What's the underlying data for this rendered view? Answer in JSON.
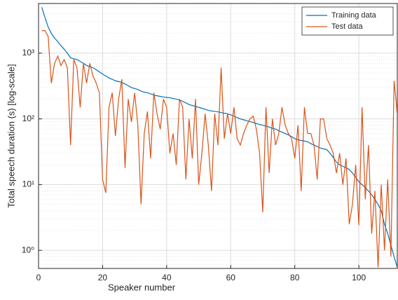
{
  "chart_data": {
    "type": "line",
    "xlabel": "Speaker number",
    "ylabel": "Total speech duration (s) [log-scale]",
    "x": [
      1,
      2,
      3,
      4,
      5,
      6,
      7,
      8,
      9,
      10,
      11,
      12,
      13,
      14,
      15,
      16,
      17,
      18,
      19,
      20,
      21,
      22,
      23,
      24,
      25,
      26,
      27,
      28,
      29,
      30,
      31,
      32,
      33,
      34,
      35,
      36,
      37,
      38,
      39,
      40,
      41,
      42,
      43,
      44,
      45,
      46,
      47,
      48,
      49,
      50,
      51,
      52,
      53,
      54,
      55,
      56,
      57,
      58,
      59,
      60,
      61,
      62,
      63,
      64,
      65,
      66,
      67,
      68,
      69,
      70,
      71,
      72,
      73,
      74,
      75,
      76,
      77,
      78,
      79,
      80,
      81,
      82,
      83,
      84,
      85,
      86,
      87,
      88,
      89,
      90,
      91,
      92,
      93,
      94,
      95,
      96,
      97,
      98,
      99,
      100,
      101,
      102,
      103,
      104,
      105,
      106,
      107,
      108,
      109,
      110,
      111,
      112
    ],
    "series": [
      {
        "name": "Training data",
        "color": "#0072bd",
        "values": [
          5000,
          3500,
          2500,
          2000,
          1700,
          1500,
          1300,
          1150,
          1000,
          850,
          820,
          800,
          750,
          700,
          650,
          620,
          600,
          560,
          520,
          480,
          450,
          420,
          400,
          380,
          370,
          360,
          340,
          320,
          300,
          290,
          280,
          265,
          255,
          250,
          240,
          230,
          225,
          220,
          215,
          212,
          210,
          205,
          200,
          195,
          185,
          175,
          165,
          160,
          155,
          150,
          145,
          140,
          135,
          132,
          130,
          128,
          125,
          122,
          120,
          115,
          110,
          105,
          100,
          97,
          94,
          91,
          88,
          85,
          82,
          80,
          78,
          75,
          72,
          70,
          66,
          63,
          60,
          57,
          54,
          50,
          48,
          47,
          46,
          45,
          42,
          40,
          38,
          36,
          35,
          34,
          30,
          26,
          22,
          20,
          19,
          18,
          17,
          15,
          13,
          11,
          10,
          9,
          8,
          7,
          6,
          5,
          4,
          2.5,
          1.8,
          1.2,
          0.8,
          0.55
        ]
      },
      {
        "name": "Test data",
        "color": "#d95319",
        "values": [
          2200,
          2200,
          1800,
          350,
          700,
          900,
          650,
          800,
          600,
          40,
          800,
          600,
          150,
          700,
          350,
          700,
          450,
          350,
          250,
          12,
          7.5,
          150,
          250,
          55,
          200,
          400,
          18,
          200,
          90,
          250,
          80,
          5,
          60,
          130,
          25,
          250,
          120,
          70,
          200,
          150,
          30,
          60,
          20,
          200,
          150,
          12,
          100,
          25,
          200,
          10,
          30,
          120,
          40,
          8,
          120,
          40,
          600,
          50,
          120,
          60,
          150,
          50,
          40,
          60,
          80,
          100,
          110,
          70,
          30,
          3.8,
          150,
          15,
          100,
          40,
          60,
          150,
          80,
          60,
          50,
          25,
          80,
          8,
          150,
          60,
          60,
          40,
          12,
          100,
          100,
          50,
          40,
          30,
          15,
          30,
          10,
          25,
          2.5,
          5,
          20,
          2.4,
          150,
          6,
          40,
          1.8,
          8,
          0.55,
          10,
          1,
          12,
          0.8,
          380,
          120
        ]
      }
    ],
    "xlim": [
      0,
      112
    ],
    "xticks": [
      0,
      20,
      40,
      60,
      80,
      100
    ],
    "ylim": [
      0.53,
      5700
    ],
    "log_y": true,
    "yticks": [
      {
        "value": 1,
        "label": "10⁰"
      },
      {
        "value": 10,
        "label": "10¹"
      },
      {
        "value": 100,
        "label": "10²"
      },
      {
        "value": 1000,
        "label": "10³"
      }
    ],
    "y_minor_ticks": [
      0.6,
      0.7,
      0.8,
      0.9,
      2,
      3,
      4,
      5,
      6,
      7,
      8,
      9,
      20,
      30,
      40,
      50,
      60,
      70,
      80,
      90,
      200,
      300,
      400,
      500,
      600,
      700,
      800,
      900,
      2000,
      3000,
      4000,
      5000
    ],
    "grid": true,
    "legend": "top-right"
  }
}
